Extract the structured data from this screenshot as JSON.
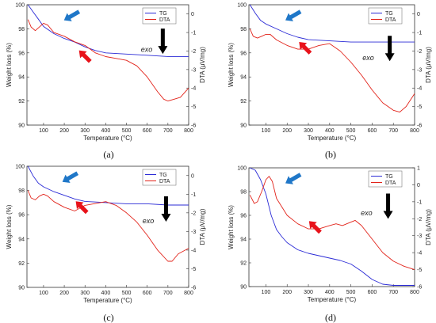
{
  "chart_data": [
    {
      "type": "line",
      "panel_label": "(a)",
      "xlabel": "Temperature (°C)",
      "ylabel": "Weight loss (%)",
      "y2label": "DTA (μV/mg)",
      "xlim": [
        20,
        800
      ],
      "ylim": [
        90,
        100
      ],
      "y2lim": [
        -6,
        0.5
      ],
      "xticks": [
        100,
        200,
        300,
        400,
        500,
        600,
        700,
        800
      ],
      "yticks": [
        90,
        92,
        94,
        96,
        98,
        100
      ],
      "y2ticks": [
        0,
        -1,
        -2,
        -3,
        -4,
        -5,
        -6
      ],
      "legend": "top-right",
      "annotation": "exo",
      "colors": {
        "TG": "#2b2bd6",
        "DTA": "#e2231a",
        "arrow1": "#1f77c8",
        "arrow2": "#e8121a",
        "arrow3": "#000000"
      },
      "series": [
        {
          "name": "TG",
          "axis": "left",
          "x": [
            25,
            50,
            75,
            100,
            150,
            200,
            250,
            300,
            350,
            400,
            500,
            600,
            700,
            800
          ],
          "y": [
            100,
            99.4,
            98.8,
            98.2,
            97.6,
            97.2,
            96.9,
            96.5,
            96.2,
            96.0,
            95.9,
            95.8,
            95.7,
            95.7
          ]
        },
        {
          "name": "DTA",
          "axis": "right",
          "x": [
            25,
            40,
            60,
            80,
            100,
            120,
            150,
            200,
            250,
            300,
            350,
            400,
            450,
            500,
            550,
            600,
            650,
            680,
            700,
            730,
            760,
            800
          ],
          "y": [
            -0.3,
            -0.7,
            -0.9,
            -0.7,
            -0.5,
            -0.6,
            -1.0,
            -1.2,
            -1.5,
            -1.7,
            -2.1,
            -2.3,
            -2.4,
            -2.5,
            -2.8,
            -3.4,
            -4.2,
            -4.6,
            -4.7,
            -4.6,
            -4.5,
            -4.0
          ]
        }
      ]
    },
    {
      "type": "line",
      "panel_label": "(b)",
      "xlabel": "Temperature (°C)",
      "ylabel": "Weight loss (%)",
      "y2label": "DTA (μV/mg)",
      "xlim": [
        20,
        800
      ],
      "ylim": [
        90,
        100
      ],
      "y2lim": [
        -6,
        0.5
      ],
      "xticks": [
        100,
        200,
        300,
        400,
        500,
        600,
        700,
        800
      ],
      "yticks": [
        90,
        92,
        94,
        96,
        98,
        100
      ],
      "y2ticks": [
        0,
        -1,
        -2,
        -3,
        -4,
        -5,
        -6
      ],
      "legend": "top-right",
      "annotation": "exo",
      "colors": {
        "TG": "#2b2bd6",
        "DTA": "#e2231a",
        "arrow1": "#1f77c8",
        "arrow2": "#e8121a",
        "arrow3": "#000000"
      },
      "series": [
        {
          "name": "TG",
          "axis": "left",
          "x": [
            25,
            50,
            75,
            100,
            150,
            200,
            250,
            300,
            400,
            500,
            600,
            700,
            800
          ],
          "y": [
            100,
            99.3,
            98.7,
            98.4,
            98.0,
            97.6,
            97.3,
            97.1,
            97.0,
            96.9,
            96.9,
            96.9,
            96.9
          ]
        },
        {
          "name": "DTA",
          "axis": "right",
          "x": [
            25,
            40,
            60,
            80,
            100,
            120,
            150,
            200,
            250,
            300,
            350,
            400,
            450,
            500,
            550,
            600,
            650,
            700,
            730,
            760,
            800
          ],
          "y": [
            -0.8,
            -1.2,
            -1.3,
            -1.2,
            -1.1,
            -1.1,
            -1.4,
            -1.7,
            -1.9,
            -1.9,
            -1.7,
            -1.6,
            -2.0,
            -2.6,
            -3.3,
            -4.1,
            -4.8,
            -5.2,
            -5.3,
            -5.0,
            -4.3
          ]
        }
      ]
    },
    {
      "type": "line",
      "panel_label": "(c)",
      "xlabel": "Temperature (°C)",
      "ylabel": "Weight loss (%)",
      "y2label": "DTA (μV/mg)",
      "xlim": [
        20,
        800
      ],
      "ylim": [
        90,
        100
      ],
      "y2lim": [
        -6,
        0.5
      ],
      "xticks": [
        100,
        200,
        300,
        400,
        500,
        600,
        700,
        800
      ],
      "yticks": [
        90,
        92,
        94,
        96,
        98,
        100
      ],
      "y2ticks": [
        0,
        -1,
        -2,
        -3,
        -4,
        -5,
        -6
      ],
      "legend": "top-right",
      "annotation": "exo",
      "colors": {
        "TG": "#2b2bd6",
        "DTA": "#e2231a",
        "arrow1": "#1f77c8",
        "arrow2": "#e8121a",
        "arrow3": "#000000"
      },
      "series": [
        {
          "name": "TG",
          "axis": "left",
          "x": [
            25,
            50,
            75,
            100,
            150,
            200,
            250,
            300,
            400,
            500,
            600,
            700,
            800
          ],
          "y": [
            100,
            99.2,
            98.6,
            98.3,
            97.9,
            97.6,
            97.3,
            97.1,
            97.0,
            96.9,
            96.9,
            96.8,
            96.8
          ]
        },
        {
          "name": "DTA",
          "axis": "right",
          "x": [
            25,
            40,
            60,
            80,
            100,
            120,
            150,
            200,
            250,
            300,
            350,
            400,
            450,
            500,
            550,
            600,
            650,
            700,
            720,
            750,
            800
          ],
          "y": [
            -0.8,
            -1.2,
            -1.3,
            -1.1,
            -1.0,
            -1.1,
            -1.4,
            -1.7,
            -1.9,
            -1.6,
            -1.5,
            -1.4,
            -1.6,
            -2.0,
            -2.5,
            -3.2,
            -4.0,
            -4.6,
            -4.6,
            -4.2,
            -3.9
          ]
        }
      ]
    },
    {
      "type": "line",
      "panel_label": "(d)",
      "xlabel": "Temperature (°C)",
      "ylabel": "Weight loss (%)",
      "y2label": "DTA (μV/mg)",
      "xlim": [
        20,
        800
      ],
      "ylim": [
        90,
        100
      ],
      "y2lim": [
        -6,
        1
      ],
      "xticks": [
        100,
        200,
        300,
        400,
        500,
        600,
        700,
        800
      ],
      "yticks": [
        90,
        92,
        94,
        96,
        98,
        100
      ],
      "y2ticks": [
        1,
        0,
        -1,
        -2,
        -3,
        -4,
        -5,
        -6
      ],
      "legend": "top-right",
      "annotation": "exo",
      "colors": {
        "TG": "#2b2bd6",
        "DTA": "#e2231a",
        "arrow1": "#1f77c8",
        "arrow2": "#e8121a",
        "arrow3": "#000000"
      },
      "series": [
        {
          "name": "TG",
          "axis": "left",
          "x": [
            25,
            50,
            75,
            100,
            125,
            150,
            175,
            200,
            250,
            300,
            400,
            450,
            500,
            550,
            600,
            650,
            700,
            800
          ],
          "y": [
            100,
            99.8,
            99.0,
            97.8,
            96.0,
            94.8,
            94.2,
            93.7,
            93.1,
            92.8,
            92.4,
            92.2,
            91.9,
            91.3,
            90.6,
            90.2,
            90.1,
            90.1
          ]
        },
        {
          "name": "DTA",
          "axis": "right",
          "x": [
            25,
            45,
            60,
            80,
            100,
            115,
            130,
            150,
            200,
            250,
            300,
            350,
            400,
            430,
            460,
            500,
            520,
            550,
            600,
            650,
            700,
            750,
            800
          ],
          "y": [
            -0.6,
            -1.1,
            -1.0,
            -0.4,
            0.3,
            0.5,
            0.2,
            -0.8,
            -1.8,
            -2.3,
            -2.6,
            -2.6,
            -2.4,
            -2.3,
            -2.4,
            -2.2,
            -2.1,
            -2.4,
            -3.2,
            -4.0,
            -4.5,
            -4.8,
            -5.0
          ]
        }
      ]
    }
  ]
}
